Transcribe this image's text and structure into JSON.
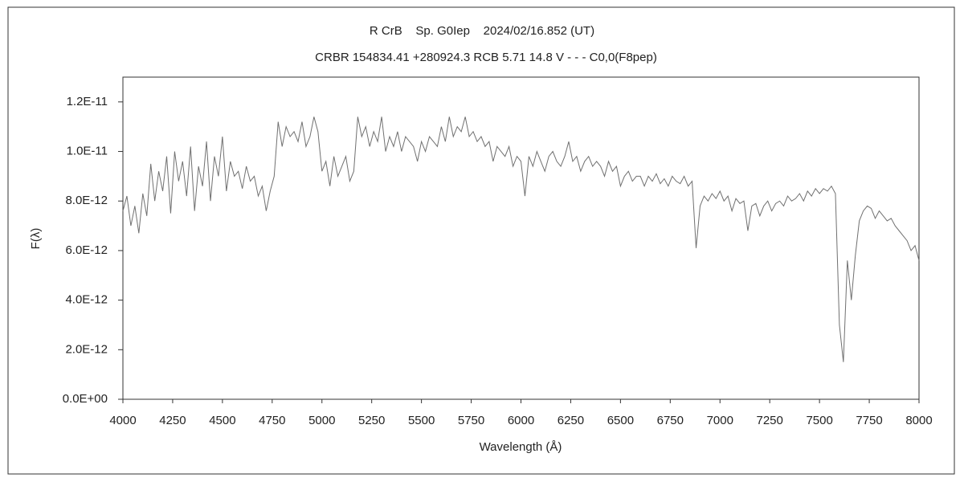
{
  "chart_data": {
    "type": "line",
    "title": "R CrB    Sp. G0Iep    2024/02/16.852 (UT)",
    "subtitle": "CRBR 154834.41 +280924.3 RCB 5.71 14.8 V - - - C0,0(F8pep)",
    "x_label": "Wavelength (Å)",
    "y_label": "F(λ)",
    "xlim": [
      4000,
      8000
    ],
    "ylim": [
      0,
      1.3e-11
    ],
    "xticks": [
      4000,
      4250,
      4500,
      4750,
      5000,
      5250,
      5500,
      5750,
      6000,
      6250,
      6500,
      6750,
      7000,
      7250,
      7500,
      7750,
      8000
    ],
    "yticks": [
      {
        "value": 0,
        "label": "0.0E+00"
      },
      {
        "value": 2e-12,
        "label": "2.0E-12"
      },
      {
        "value": 4e-12,
        "label": "4.0E-12"
      },
      {
        "value": 6e-12,
        "label": "6.0E-12"
      },
      {
        "value": 8e-12,
        "label": "8.0E-12"
      },
      {
        "value": 1e-11,
        "label": "1.0E-11"
      },
      {
        "value": 1.2e-11,
        "label": "1.2E-11"
      }
    ],
    "grid": false,
    "color": "#707070",
    "x": [
      4000,
      4020,
      4040,
      4060,
      4080,
      4100,
      4120,
      4140,
      4160,
      4180,
      4200,
      4220,
      4240,
      4260,
      4280,
      4300,
      4320,
      4340,
      4360,
      4380,
      4400,
      4420,
      4440,
      4460,
      4480,
      4500,
      4520,
      4540,
      4560,
      4580,
      4600,
      4620,
      4640,
      4660,
      4680,
      4700,
      4720,
      4740,
      4760,
      4780,
      4800,
      4820,
      4840,
      4860,
      4880,
      4900,
      4920,
      4940,
      4960,
      4980,
      5000,
      5020,
      5040,
      5060,
      5080,
      5100,
      5120,
      5140,
      5160,
      5180,
      5200,
      5220,
      5240,
      5260,
      5280,
      5300,
      5320,
      5340,
      5360,
      5380,
      5400,
      5420,
      5440,
      5460,
      5480,
      5500,
      5520,
      5540,
      5560,
      5580,
      5600,
      5620,
      5640,
      5660,
      5680,
      5700,
      5720,
      5740,
      5760,
      5780,
      5800,
      5820,
      5840,
      5860,
      5880,
      5900,
      5920,
      5940,
      5960,
      5980,
      6000,
      6020,
      6040,
      6060,
      6080,
      6100,
      6120,
      6140,
      6160,
      6180,
      6200,
      6220,
      6240,
      6260,
      6280,
      6300,
      6320,
      6340,
      6360,
      6380,
      6400,
      6420,
      6440,
      6460,
      6480,
      6500,
      6520,
      6540,
      6560,
      6580,
      6600,
      6620,
      6640,
      6660,
      6680,
      6700,
      6720,
      6740,
      6760,
      6780,
      6800,
      6820,
      6840,
      6860,
      6880,
      6900,
      6920,
      6940,
      6960,
      6980,
      7000,
      7020,
      7040,
      7060,
      7080,
      7100,
      7120,
      7140,
      7160,
      7180,
      7200,
      7220,
      7240,
      7260,
      7280,
      7300,
      7320,
      7340,
      7360,
      7380,
      7400,
      7420,
      7440,
      7460,
      7480,
      7500,
      7520,
      7540,
      7560,
      7580,
      7600,
      7620,
      7640,
      7660,
      7680,
      7700,
      7720,
      7740,
      7760,
      7780,
      7800,
      7820,
      7840,
      7860,
      7880,
      7900,
      7920,
      7940,
      7960,
      7980,
      8000
    ],
    "values": [
      7.6e-12,
      8.2e-12,
      7e-12,
      7.8e-12,
      6.7e-12,
      8.3e-12,
      7.4e-12,
      9.5e-12,
      8e-12,
      9.2e-12,
      8.4e-12,
      9.8e-12,
      7.5e-12,
      1e-11,
      8.8e-12,
      9.6e-12,
      8.2e-12,
      1.02e-11,
      7.6e-12,
      9.4e-12,
      8.6e-12,
      1.04e-11,
      8e-12,
      9.8e-12,
      9e-12,
      1.06e-11,
      8.4e-12,
      9.6e-12,
      9e-12,
      9.2e-12,
      8.5e-12,
      9.4e-12,
      8.8e-12,
      9e-12,
      8.2e-12,
      8.6e-12,
      7.6e-12,
      8.4e-12,
      9e-12,
      1.12e-11,
      1.02e-11,
      1.1e-11,
      1.06e-11,
      1.08e-11,
      1.04e-11,
      1.12e-11,
      1.02e-11,
      1.06e-11,
      1.14e-11,
      1.08e-11,
      9.2e-12,
      9.6e-12,
      8.6e-12,
      9.8e-12,
      9e-12,
      9.4e-12,
      9.8e-12,
      8.8e-12,
      9.2e-12,
      1.14e-11,
      1.06e-11,
      1.1e-11,
      1.02e-11,
      1.08e-11,
      1.04e-11,
      1.14e-11,
      1e-11,
      1.06e-11,
      1.02e-11,
      1.08e-11,
      1e-11,
      1.06e-11,
      1.04e-11,
      1.02e-11,
      9.6e-12,
      1.04e-11,
      1e-11,
      1.06e-11,
      1.04e-11,
      1.02e-11,
      1.1e-11,
      1.04e-11,
      1.14e-11,
      1.06e-11,
      1.1e-11,
      1.08e-11,
      1.14e-11,
      1.06e-11,
      1.08e-11,
      1.04e-11,
      1.06e-11,
      1.02e-11,
      1.04e-11,
      9.6e-12,
      1.02e-11,
      1e-11,
      9.8e-12,
      1.02e-11,
      9.4e-12,
      9.8e-12,
      9.6e-12,
      8.2e-12,
      9.8e-12,
      9.4e-12,
      1e-11,
      9.6e-12,
      9.2e-12,
      9.8e-12,
      1e-11,
      9.6e-12,
      9.4e-12,
      9.8e-12,
      1.04e-11,
      9.6e-12,
      9.8e-12,
      9.2e-12,
      9.6e-12,
      9.8e-12,
      9.4e-12,
      9.6e-12,
      9.4e-12,
      9e-12,
      9.6e-12,
      9.2e-12,
      9.4e-12,
      8.6e-12,
      9e-12,
      9.2e-12,
      8.8e-12,
      9e-12,
      9e-12,
      8.6e-12,
      9e-12,
      8.8e-12,
      9.1e-12,
      8.7e-12,
      8.9e-12,
      8.6e-12,
      9e-12,
      8.8e-12,
      8.7e-12,
      9e-12,
      8.6e-12,
      8.8e-12,
      6.1e-12,
      7.8e-12,
      8.2e-12,
      8e-12,
      8.3e-12,
      8.1e-12,
      8.4e-12,
      8e-12,
      8.2e-12,
      7.6e-12,
      8.1e-12,
      7.9e-12,
      8e-12,
      6.8e-12,
      7.8e-12,
      7.9e-12,
      7.4e-12,
      7.8e-12,
      8e-12,
      7.6e-12,
      7.9e-12,
      8e-12,
      7.8e-12,
      8.2e-12,
      8e-12,
      8.1e-12,
      8.3e-12,
      8e-12,
      8.4e-12,
      8.2e-12,
      8.5e-12,
      8.3e-12,
      8.5e-12,
      8.4e-12,
      8.6e-12,
      8.3e-12,
      3e-12,
      1.5e-12,
      5.6e-12,
      4e-12,
      5.8e-12,
      7.2e-12,
      7.6e-12,
      7.8e-12,
      7.7e-12,
      7.3e-12,
      7.6e-12,
      7.4e-12,
      7.2e-12,
      7.3e-12,
      7e-12,
      6.8e-12,
      6.6e-12,
      6.4e-12,
      6e-12,
      6.2e-12,
      5.6e-12
    ]
  }
}
